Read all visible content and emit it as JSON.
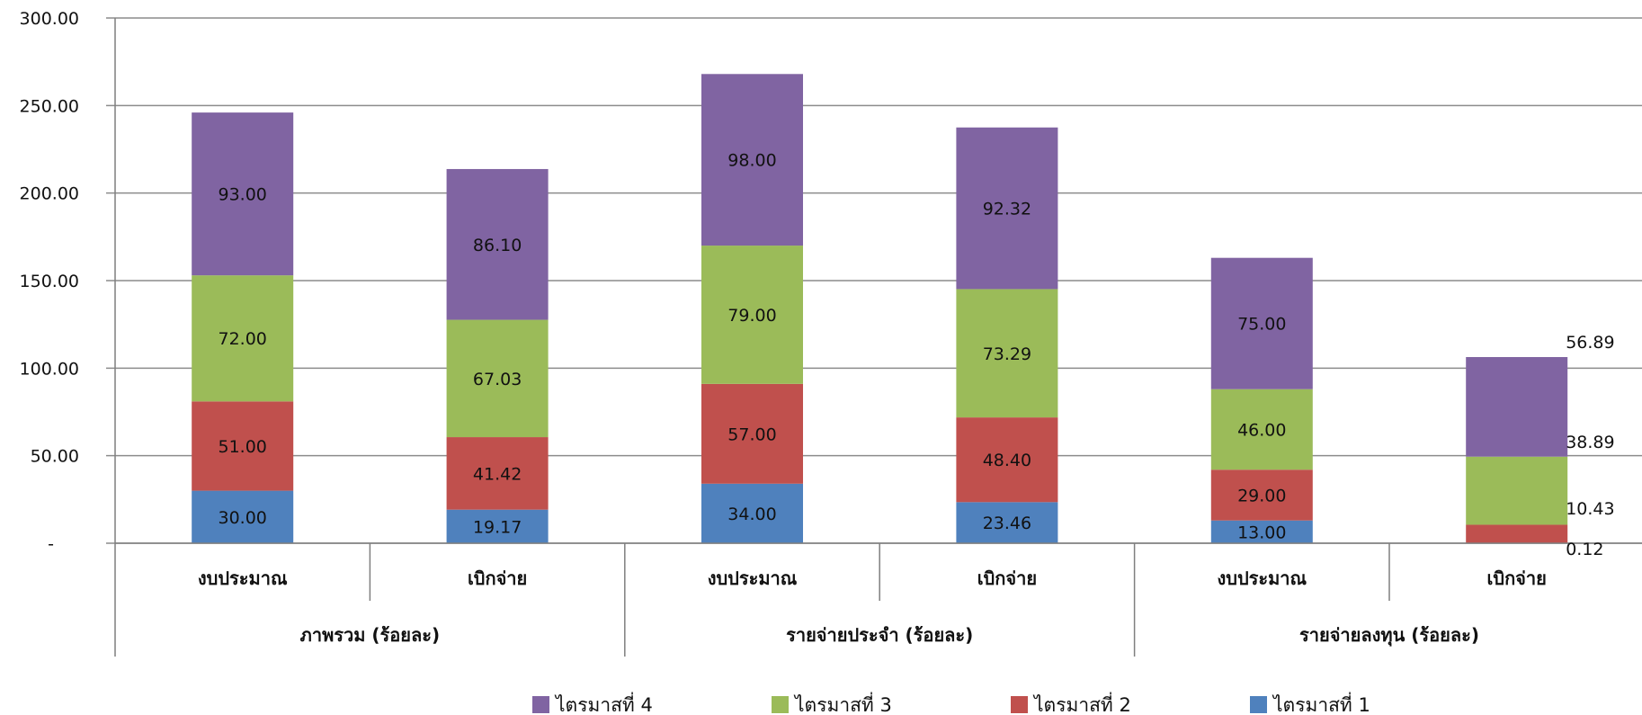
{
  "chart_data": {
    "type": "bar",
    "stacked": true,
    "groups": [
      "ภาพรวม (ร้อยละ)",
      "รายจ่ายประจำ (ร้อยละ)",
      "รายจ่ายลงทุน (ร้อยละ)"
    ],
    "categories": [
      "งบประมาณ",
      "เบิกจ่าย",
      "งบประมาณ",
      "เบิกจ่าย",
      "งบประมาณ",
      "เบิกจ่าย"
    ],
    "series": [
      {
        "name": "ไตรมาสที่ 1",
        "color": "#4F81BD",
        "values": [
          30.0,
          19.17,
          34.0,
          23.46,
          13.0,
          0.12
        ],
        "labels": [
          "30.00",
          "19.17",
          "34.00",
          "23.46",
          "13.00",
          "0.12"
        ]
      },
      {
        "name": "ไตรมาสที่ 2",
        "color": "#C0504D",
        "values": [
          51.0,
          41.42,
          57.0,
          48.4,
          29.0,
          10.43
        ],
        "labels": [
          "51.00",
          "41.42",
          "57.00",
          "48.40",
          "29.00",
          "10.43"
        ]
      },
      {
        "name": "ไตรมาสที่ 3",
        "color": "#9BBB59",
        "values": [
          72.0,
          67.03,
          79.0,
          73.29,
          46.0,
          38.89
        ],
        "labels": [
          "72.00",
          "67.03",
          "79.00",
          "73.29",
          "46.00",
          "38.89"
        ]
      },
      {
        "name": "ไตรมาสที่ 4",
        "color": "#8064A2",
        "values": [
          93.0,
          86.1,
          98.0,
          92.32,
          75.0,
          56.89
        ],
        "labels": [
          "93.00",
          "86.10",
          "98.00",
          "92.32",
          "75.00",
          "56.89"
        ]
      }
    ],
    "ylim": [
      0,
      300
    ],
    "yticks": [
      {
        "value": 0,
        "label": "-"
      },
      {
        "value": 50,
        "label": "50.00"
      },
      {
        "value": 100,
        "label": "100.00"
      },
      {
        "value": 150,
        "label": "150.00"
      },
      {
        "value": 200,
        "label": "200.00"
      },
      {
        "value": 250,
        "label": "250.00"
      },
      {
        "value": 300,
        "label": "300.00"
      }
    ],
    "grid": true,
    "legend_position": "bottom",
    "legend_order": [
      3,
      2,
      1,
      0
    ]
  }
}
